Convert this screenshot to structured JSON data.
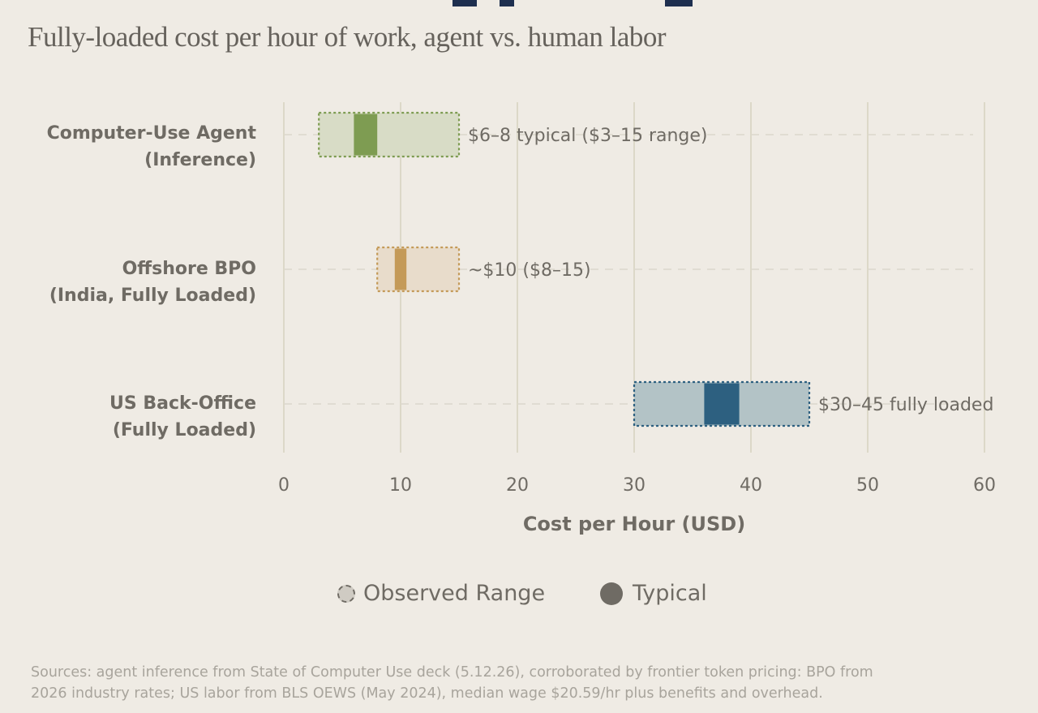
{
  "subtitle": "Fully-loaded cost per hour of work, agent vs. human labor",
  "chart_data": {
    "type": "range",
    "xlabel": "Cost per Hour (USD)",
    "xlim": [
      0,
      60
    ],
    "xticks": [
      "0",
      "10",
      "20",
      "30",
      "40",
      "50",
      "60"
    ],
    "grid": true,
    "rows": [
      {
        "label_lines": [
          "Computer-Use Agent",
          "(Inference)"
        ],
        "range": [
          3,
          15
        ],
        "typical": [
          6,
          8
        ],
        "annotation": "$6–8 typical ($3–15 range)",
        "color": "#7e9c52",
        "fill": "#d8dcc6"
      },
      {
        "label_lines": [
          "Offshore BPO",
          "(India, Fully Loaded)"
        ],
        "range": [
          8,
          15
        ],
        "typical": [
          9.5,
          10.5
        ],
        "annotation": "~$10 ($8–15)",
        "color": "#c49a58",
        "fill": "#e8dccb"
      },
      {
        "label_lines": [
          "US Back-Office",
          "(Fully Loaded)"
        ],
        "range": [
          30,
          45
        ],
        "typical": [
          36,
          39
        ],
        "annotation": "$30–45 fully loaded",
        "color": "#2d6080",
        "fill": "#b3c3c6"
      }
    ]
  },
  "legend": {
    "range_label": "Observed Range",
    "typical_label": "Typical",
    "range_color": "#6f6b64",
    "typical_color": "#6f6b64"
  },
  "sources": {
    "line1": "Sources: agent inference from State of Computer Use deck (5.12.26), corroborated by frontier token pricing: BPO from",
    "line2": "2026 industry rates; US labor from BLS OEWS (May 2024), median wage $20.59/hr plus benefits and overhead."
  }
}
